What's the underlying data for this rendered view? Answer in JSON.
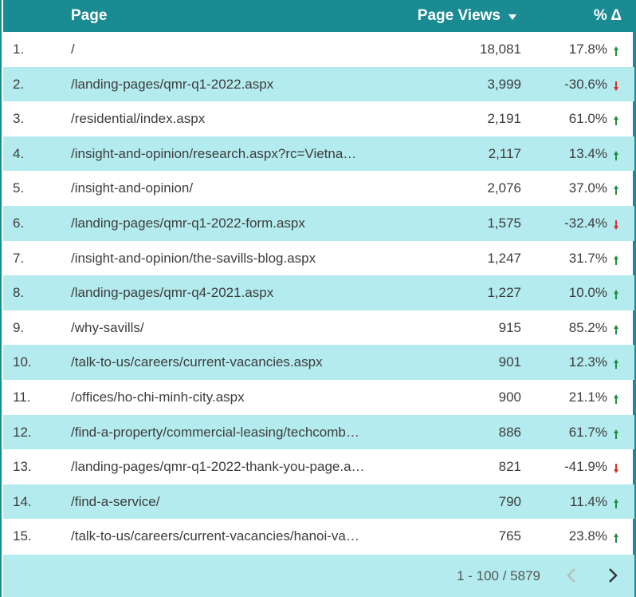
{
  "header": {
    "page_label": "Page",
    "views_label": "Page Views",
    "delta_label": "% Δ"
  },
  "rows": [
    {
      "num": "1.",
      "page": "/",
      "views": "18,081",
      "delta": "17.8%",
      "trend": "up"
    },
    {
      "num": "2.",
      "page": "/landing-pages/qmr-q1-2022.aspx",
      "views": "3,999",
      "delta": "-30.6%",
      "trend": "down"
    },
    {
      "num": "3.",
      "page": "/residential/index.aspx",
      "views": "2,191",
      "delta": "61.0%",
      "trend": "up"
    },
    {
      "num": "4.",
      "page": "/insight-and-opinion/research.aspx?rc=Vietna…",
      "views": "2,117",
      "delta": "13.4%",
      "trend": "up"
    },
    {
      "num": "5.",
      "page": "/insight-and-opinion/",
      "views": "2,076",
      "delta": "37.0%",
      "trend": "up"
    },
    {
      "num": "6.",
      "page": "/landing-pages/qmr-q1-2022-form.aspx",
      "views": "1,575",
      "delta": "-32.4%",
      "trend": "down"
    },
    {
      "num": "7.",
      "page": "/insight-and-opinion/the-savills-blog.aspx",
      "views": "1,247",
      "delta": "31.7%",
      "trend": "up"
    },
    {
      "num": "8.",
      "page": "/landing-pages/qmr-q4-2021.aspx",
      "views": "1,227",
      "delta": "10.0%",
      "trend": "up"
    },
    {
      "num": "9.",
      "page": "/why-savills/",
      "views": "915",
      "delta": "85.2%",
      "trend": "up"
    },
    {
      "num": "10.",
      "page": "/talk-to-us/careers/current-vacancies.aspx",
      "views": "901",
      "delta": "12.3%",
      "trend": "up"
    },
    {
      "num": "11.",
      "page": "/offices/ho-chi-minh-city.aspx",
      "views": "900",
      "delta": "21.1%",
      "trend": "up"
    },
    {
      "num": "12.",
      "page": "/find-a-property/commercial-leasing/techcomb…",
      "views": "886",
      "delta": "61.7%",
      "trend": "up"
    },
    {
      "num": "13.",
      "page": "/landing-pages/qmr-q1-2022-thank-you-page.a…",
      "views": "821",
      "delta": "-41.9%",
      "trend": "down"
    },
    {
      "num": "14.",
      "page": "/find-a-service/",
      "views": "790",
      "delta": "11.4%",
      "trend": "up"
    },
    {
      "num": "15.",
      "page": "/talk-to-us/careers/current-vacancies/hanoi-va…",
      "views": "765",
      "delta": "23.8%",
      "trend": "up"
    }
  ],
  "footer": {
    "range": "1 - 100 / 5879"
  },
  "colors": {
    "header_bg": "#1a8a93",
    "alt_row_bg": "#b3ebef",
    "up": "#1e8e3e",
    "down": "#d93025"
  },
  "icons": {
    "sort": "sort-descending-icon",
    "up": "arrow-up-icon",
    "down": "arrow-down-icon",
    "prev": "chevron-left-icon",
    "next": "chevron-right-icon"
  }
}
